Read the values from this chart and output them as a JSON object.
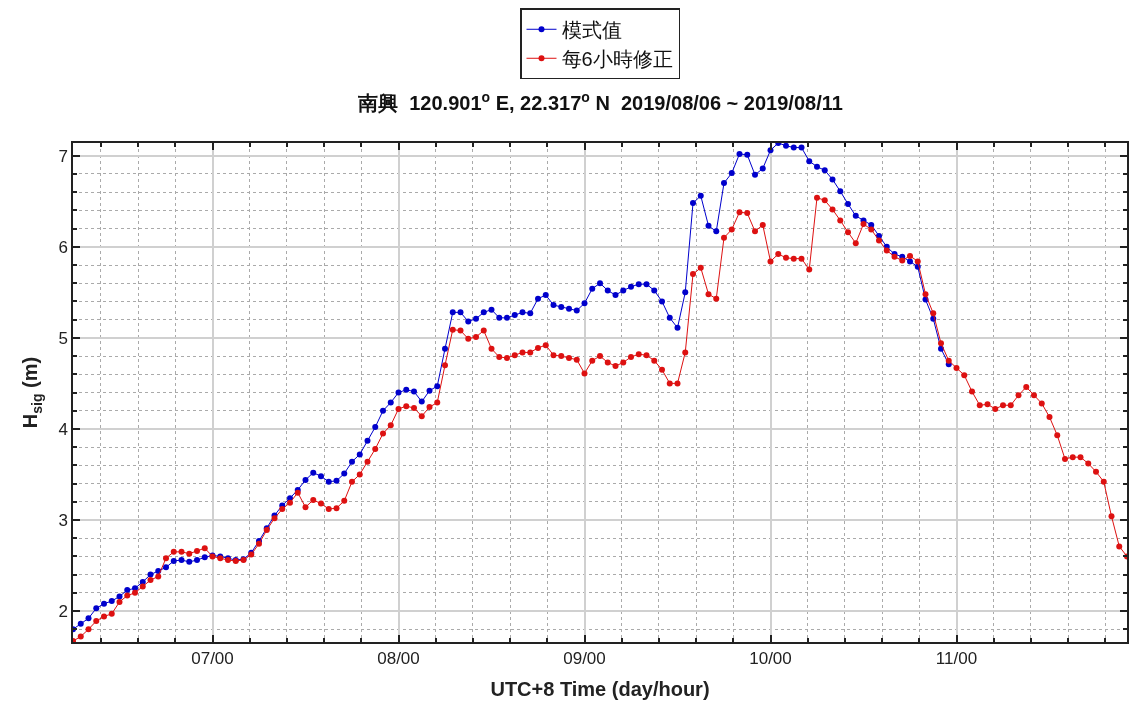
{
  "chart_data": {
    "type": "line",
    "title": "南興  120.901$^{o}$ E, 22.317$^{o}$ N  2019/08/06 ~ 2019/08/11",
    "xlabel": "UTC+8 Time (day/hour)",
    "ylabel": "H$_{sig}$ (m)",
    "x": [
      "2019-08-06T06:00",
      "2019-08-06T07:00",
      "2019-08-06T08:00",
      "2019-08-06T09:00",
      "2019-08-06T10:00",
      "2019-08-06T11:00",
      "2019-08-06T12:00",
      "2019-08-06T13:00",
      "2019-08-06T14:00",
      "2019-08-06T15:00",
      "2019-08-06T16:00",
      "2019-08-06T17:00",
      "2019-08-06T18:00",
      "2019-08-06T19:00",
      "2019-08-06T20:00",
      "2019-08-06T21:00",
      "2019-08-06T22:00",
      "2019-08-06T23:00",
      "2019-08-07T00:00",
      "2019-08-07T01:00",
      "2019-08-07T02:00",
      "2019-08-07T03:00",
      "2019-08-07T04:00",
      "2019-08-07T05:00",
      "2019-08-07T06:00",
      "2019-08-07T07:00",
      "2019-08-07T08:00",
      "2019-08-07T09:00",
      "2019-08-07T10:00",
      "2019-08-07T11:00",
      "2019-08-07T12:00",
      "2019-08-07T13:00",
      "2019-08-07T14:00",
      "2019-08-07T15:00",
      "2019-08-07T16:00",
      "2019-08-07T17:00",
      "2019-08-07T18:00",
      "2019-08-07T19:00",
      "2019-08-07T20:00",
      "2019-08-07T21:00",
      "2019-08-07T22:00",
      "2019-08-07T23:00",
      "2019-08-08T00:00",
      "2019-08-08T01:00",
      "2019-08-08T02:00",
      "2019-08-08T03:00",
      "2019-08-08T04:00",
      "2019-08-08T05:00",
      "2019-08-08T06:00",
      "2019-08-08T07:00",
      "2019-08-08T08:00",
      "2019-08-08T09:00",
      "2019-08-08T10:00",
      "2019-08-08T11:00",
      "2019-08-08T12:00",
      "2019-08-08T13:00",
      "2019-08-08T14:00",
      "2019-08-08T15:00",
      "2019-08-08T16:00",
      "2019-08-08T17:00",
      "2019-08-08T18:00",
      "2019-08-08T19:00",
      "2019-08-08T20:00",
      "2019-08-08T21:00",
      "2019-08-08T22:00",
      "2019-08-08T23:00",
      "2019-08-09T00:00",
      "2019-08-09T01:00",
      "2019-08-09T02:00",
      "2019-08-09T03:00",
      "2019-08-09T04:00",
      "2019-08-09T05:00",
      "2019-08-09T06:00",
      "2019-08-09T07:00",
      "2019-08-09T08:00",
      "2019-08-09T09:00",
      "2019-08-09T10:00",
      "2019-08-09T11:00",
      "2019-08-09T12:00",
      "2019-08-09T13:00",
      "2019-08-09T14:00",
      "2019-08-09T15:00",
      "2019-08-09T16:00",
      "2019-08-09T17:00",
      "2019-08-09T18:00",
      "2019-08-09T19:00",
      "2019-08-09T20:00",
      "2019-08-09T21:00",
      "2019-08-09T22:00",
      "2019-08-09T23:00",
      "2019-08-10T00:00",
      "2019-08-10T01:00",
      "2019-08-10T02:00",
      "2019-08-10T03:00",
      "2019-08-10T04:00",
      "2019-08-10T05:00",
      "2019-08-10T06:00",
      "2019-08-10T07:00",
      "2019-08-10T08:00",
      "2019-08-10T09:00",
      "2019-08-10T10:00",
      "2019-08-10T11:00",
      "2019-08-10T12:00",
      "2019-08-10T13:00",
      "2019-08-10T14:00",
      "2019-08-10T15:00",
      "2019-08-10T16:00",
      "2019-08-10T17:00",
      "2019-08-10T18:00",
      "2019-08-10T19:00",
      "2019-08-10T20:00",
      "2019-08-10T21:00",
      "2019-08-10T22:00",
      "2019-08-10T23:00",
      "2019-08-11T00:00",
      "2019-08-11T01:00",
      "2019-08-11T02:00",
      "2019-08-11T03:00",
      "2019-08-11T04:00",
      "2019-08-11T05:00",
      "2019-08-11T06:00",
      "2019-08-11T07:00",
      "2019-08-11T08:00",
      "2019-08-11T09:00",
      "2019-08-11T10:00",
      "2019-08-11T11:00",
      "2019-08-11T12:00",
      "2019-08-11T13:00",
      "2019-08-11T14:00",
      "2019-08-11T15:00",
      "2019-08-11T16:00",
      "2019-08-11T17:00",
      "2019-08-11T18:00",
      "2019-08-11T19:00",
      "2019-08-11T20:00",
      "2019-08-11T21:00",
      "2019-08-11T22:00"
    ],
    "series": [
      {
        "name": "模式值",
        "color": "#0000cc",
        "values": [
          1.8,
          1.86,
          1.92,
          2.03,
          2.08,
          2.11,
          2.16,
          2.23,
          2.25,
          2.32,
          2.4,
          2.44,
          2.48,
          2.55,
          2.56,
          2.54,
          2.56,
          2.59,
          2.61,
          2.6,
          2.58,
          2.56,
          2.57,
          2.64,
          2.77,
          2.91,
          3.05,
          3.16,
          3.24,
          3.33,
          3.44,
          3.52,
          3.48,
          3.42,
          3.43,
          3.51,
          3.64,
          3.72,
          3.87,
          4.02,
          4.2,
          4.29,
          4.4,
          4.43,
          4.41,
          4.3,
          4.42,
          4.47,
          4.88,
          5.28,
          5.28,
          5.18,
          5.21,
          5.28,
          5.31,
          5.22,
          5.22,
          5.25,
          5.28,
          5.27,
          5.43,
          5.47,
          5.36,
          5.34,
          5.32,
          5.3,
          5.38,
          5.54,
          5.6,
          5.52,
          5.47,
          5.52,
          5.56,
          5.59,
          5.59,
          5.52,
          5.4,
          5.22,
          5.11,
          5.5,
          6.48,
          6.56,
          6.23,
          6.17,
          6.7,
          6.81,
          7.02,
          7.01,
          6.79,
          6.86,
          7.06,
          7.14,
          7.11,
          7.09,
          7.09,
          6.94,
          6.88,
          6.84,
          6.74,
          6.61,
          6.47,
          6.34,
          6.29,
          6.24,
          6.12,
          6.0,
          5.92,
          5.89,
          5.84,
          5.78,
          5.42,
          5.21,
          4.88,
          4.71,
          null,
          null,
          null,
          null,
          null,
          null,
          null,
          null,
          null,
          null,
          null,
          null,
          null,
          null,
          null,
          null,
          null,
          null,
          null,
          null,
          null,
          null,
          null
        ]
      },
      {
        "name": "每6小時修正",
        "color": "#dd1111",
        "values": [
          1.67,
          1.72,
          1.8,
          1.89,
          1.94,
          1.97,
          2.1,
          2.17,
          2.2,
          2.27,
          2.34,
          2.38,
          2.58,
          2.65,
          2.65,
          2.63,
          2.66,
          2.69,
          2.6,
          2.58,
          2.56,
          2.55,
          2.56,
          2.62,
          2.74,
          2.89,
          3.02,
          3.12,
          3.19,
          3.3,
          3.14,
          3.22,
          3.18,
          3.12,
          3.13,
          3.21,
          3.42,
          3.5,
          3.64,
          3.78,
          3.95,
          4.04,
          4.22,
          4.25,
          4.23,
          4.14,
          4.24,
          4.29,
          4.7,
          5.09,
          5.08,
          4.99,
          5.01,
          5.08,
          4.88,
          4.79,
          4.78,
          4.81,
          4.84,
          4.84,
          4.89,
          4.92,
          4.81,
          4.8,
          4.78,
          4.76,
          4.61,
          4.75,
          4.8,
          4.73,
          4.69,
          4.73,
          4.79,
          4.82,
          4.81,
          4.75,
          4.65,
          4.5,
          4.5,
          4.84,
          5.7,
          5.77,
          5.48,
          5.43,
          6.1,
          6.19,
          6.38,
          6.37,
          6.17,
          6.24,
          5.84,
          5.92,
          5.88,
          5.87,
          5.87,
          5.75,
          6.54,
          6.51,
          6.41,
          6.29,
          6.16,
          6.04,
          6.25,
          6.19,
          6.07,
          5.96,
          5.89,
          5.85,
          5.9,
          5.84,
          5.48,
          5.27,
          4.94,
          4.75,
          4.67,
          4.59,
          4.41,
          4.26,
          4.27,
          4.22,
          4.26,
          4.26,
          4.37,
          4.46,
          4.37,
          4.28,
          4.13,
          3.93,
          3.67,
          3.69,
          3.69,
          3.62,
          3.53,
          3.42,
          3.04,
          2.71,
          2.6
        ]
      }
    ],
    "xlim": [
      "2019-08-06T06:00",
      "2019-08-11T22:00"
    ],
    "xticks": [
      {
        "value": "2019-08-06T09:36",
        "label": null
      },
      {
        "value": "2019-08-06T14:24",
        "label": null
      },
      {
        "value": "2019-08-06T19:12",
        "label": null
      },
      {
        "value": "2019-08-07T00:00",
        "label": "07/00"
      },
      {
        "value": "2019-08-07T04:48",
        "label": null
      },
      {
        "value": "2019-08-07T09:36",
        "label": null
      },
      {
        "value": "2019-08-07T14:24",
        "label": null
      },
      {
        "value": "2019-08-07T19:12",
        "label": null
      },
      {
        "value": "2019-08-08T00:00",
        "label": "08/00"
      },
      {
        "value": "2019-08-08T04:48",
        "label": null
      },
      {
        "value": "2019-08-08T09:36",
        "label": null
      },
      {
        "value": "2019-08-08T14:24",
        "label": null
      },
      {
        "value": "2019-08-08T19:12",
        "label": null
      },
      {
        "value": "2019-08-09T00:00",
        "label": "09/00"
      },
      {
        "value": "2019-08-09T04:48",
        "label": null
      },
      {
        "value": "2019-08-09T09:36",
        "label": null
      },
      {
        "value": "2019-08-09T14:24",
        "label": null
      },
      {
        "value": "2019-08-09T19:12",
        "label": null
      },
      {
        "value": "2019-08-10T00:00",
        "label": "10/00"
      },
      {
        "value": "2019-08-10T04:48",
        "label": null
      },
      {
        "value": "2019-08-10T09:36",
        "label": null
      },
      {
        "value": "2019-08-10T14:24",
        "label": null
      },
      {
        "value": "2019-08-10T19:12",
        "label": null
      },
      {
        "value": "2019-08-11T00:00",
        "label": "11/00"
      },
      {
        "value": "2019-08-11T04:48",
        "label": null
      },
      {
        "value": "2019-08-11T09:36",
        "label": null
      },
      {
        "value": "2019-08-11T14:24",
        "label": null
      },
      {
        "value": "2019-08-11T19:12",
        "label": null
      }
    ],
    "ylim": [
      1.66,
      7.14
    ],
    "yticks": [
      {
        "value": 1.8,
        "label": null
      },
      2,
      {
        "value": 2.2,
        "label": null
      },
      {
        "value": 2.4,
        "label": null
      },
      {
        "value": 2.6,
        "label": null
      },
      {
        "value": 2.8,
        "label": null
      },
      3,
      {
        "value": 3.2,
        "label": null
      },
      {
        "value": 3.4,
        "label": null
      },
      {
        "value": 3.6,
        "label": null
      },
      {
        "value": 3.8,
        "label": null
      },
      4,
      {
        "value": 4.2,
        "label": null
      },
      {
        "value": 4.4,
        "label": null
      },
      {
        "value": 4.6,
        "label": null
      },
      {
        "value": 4.8,
        "label": null
      },
      5,
      {
        "value": 5.2,
        "label": null
      },
      {
        "value": 5.4,
        "label": null
      },
      {
        "value": 5.6,
        "label": null
      },
      {
        "value": 5.8,
        "label": null
      },
      6,
      {
        "value": 6.2,
        "label": null
      },
      {
        "value": 6.4,
        "label": null
      },
      {
        "value": 6.6,
        "label": null
      },
      {
        "value": 6.8,
        "label": null
      },
      7
    ],
    "grid": true,
    "legend": "top",
    "marker": "circle",
    "line_style": "solid"
  }
}
